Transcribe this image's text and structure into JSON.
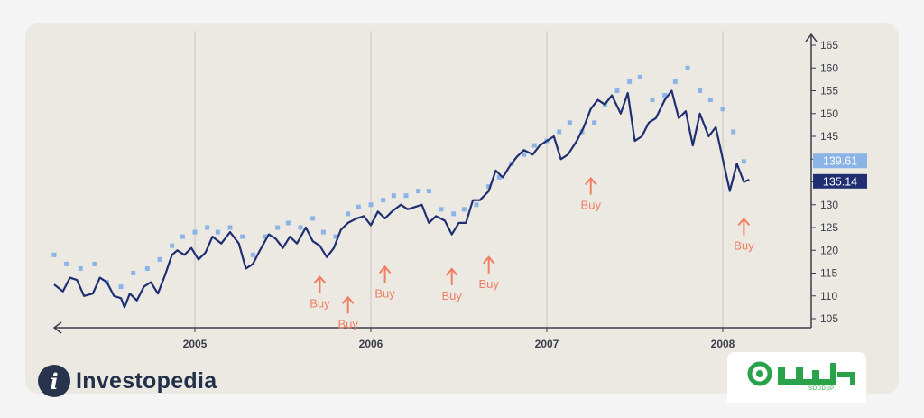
{
  "brand": {
    "name": "Investopedia",
    "mark": "i"
  },
  "logo2": {
    "subtext": "SODDUP"
  },
  "chart_data": {
    "type": "line",
    "title": "",
    "xlabel": "",
    "ylabel": "",
    "ylim": [
      103,
      167
    ],
    "xlim": [
      2004.2,
      2008.5
    ],
    "x_ticks": [
      2005,
      2006,
      2007,
      2008
    ],
    "y_ticks": [
      105,
      110,
      115,
      120,
      125,
      130,
      135,
      140,
      145,
      150,
      155,
      160,
      165
    ],
    "grid": "vertical",
    "price_labels": [
      {
        "text": "139.61",
        "value": 139.61,
        "color": "#8ab4e6"
      },
      {
        "text": "135.14",
        "value": 135.14,
        "color": "#1f2f72"
      }
    ],
    "series": [
      {
        "color": "#1f2f72",
        "style": "line",
        "x": [
          2004.2,
          2004.25,
          2004.29,
          2004.33,
          2004.37,
          2004.42,
          2004.46,
          2004.5,
          2004.54,
          2004.58,
          2004.6,
          2004.63,
          2004.67,
          2004.71,
          2004.75,
          2004.79,
          2004.83,
          2004.87,
          2004.9,
          2004.94,
          2004.98,
          2005.02,
          2005.06,
          2005.1,
          2005.15,
          2005.2,
          2005.25,
          2005.29,
          2005.33,
          2005.37,
          2005.42,
          2005.46,
          2005.5,
          2005.54,
          2005.58,
          2005.63,
          2005.67,
          2005.71,
          2005.75,
          2005.79,
          2005.83,
          2005.87,
          2005.92,
          2005.96,
          2006.0,
          2006.04,
          2006.08,
          2006.12,
          2006.17,
          2006.21,
          2006.25,
          2006.29,
          2006.33,
          2006.37,
          2006.42,
          2006.46,
          2006.5,
          2006.54,
          2006.58,
          2006.62,
          2006.67,
          2006.71,
          2006.75,
          2006.79,
          2006.83,
          2006.87,
          2006.92,
          2006.96,
          2007.0,
          2007.04,
          2007.08,
          2007.12,
          2007.17,
          2007.21,
          2007.25,
          2007.29,
          2007.33,
          2007.37,
          2007.42,
          2007.46,
          2007.5,
          2007.54,
          2007.58,
          2007.62,
          2007.67,
          2007.71,
          2007.75,
          2007.79,
          2007.83,
          2007.87,
          2007.92,
          2007.96,
          2008.0,
          2008.04,
          2008.08,
          2008.12,
          2008.15
        ],
        "y": [
          112.5,
          111,
          114,
          113.5,
          110,
          110.5,
          114,
          113,
          110,
          109.5,
          107.5,
          110.5,
          109,
          112,
          113,
          110.5,
          114.5,
          119,
          120,
          119,
          120.5,
          118,
          119.5,
          123,
          121.5,
          124,
          121.5,
          116,
          117,
          120,
          123.5,
          122.5,
          120.5,
          123,
          121.5,
          125,
          122,
          121,
          118.5,
          120.5,
          124.5,
          126,
          127,
          127.5,
          125.5,
          128.5,
          127,
          128.5,
          130,
          129,
          129.5,
          130,
          126,
          127.5,
          126.5,
          123.5,
          126,
          126,
          131,
          131,
          133,
          137.5,
          136,
          138.5,
          140.5,
          142,
          141,
          143,
          144,
          145,
          140,
          141,
          144,
          147,
          151,
          153,
          152,
          154,
          150,
          154.5,
          144,
          145,
          148,
          149,
          153,
          155,
          149,
          150.5,
          143,
          150,
          145,
          147,
          140,
          133,
          139,
          135,
          135.5
        ]
      },
      {
        "color": "#8ab4e6",
        "style": "markers",
        "x": [
          2004.2,
          2004.27,
          2004.35,
          2004.43,
          2004.5,
          2004.58,
          2004.65,
          2004.73,
          2004.8,
          2004.87,
          2004.93,
          2005.0,
          2005.07,
          2005.13,
          2005.2,
          2005.27,
          2005.33,
          2005.4,
          2005.47,
          2005.53,
          2005.6,
          2005.67,
          2005.73,
          2005.8,
          2005.87,
          2005.93,
          2006.0,
          2006.07,
          2006.13,
          2006.2,
          2006.27,
          2006.33,
          2006.4,
          2006.47,
          2006.53,
          2006.6,
          2006.67,
          2006.73,
          2006.8,
          2006.87,
          2006.93,
          2007.0,
          2007.07,
          2007.13,
          2007.2,
          2007.27,
          2007.33,
          2007.4,
          2007.47,
          2007.53,
          2007.6,
          2007.67,
          2007.73,
          2007.8,
          2007.87,
          2007.93,
          2008.0,
          2008.06,
          2008.12
        ],
        "y": [
          119,
          117,
          116,
          117,
          113,
          112,
          115,
          116,
          118,
          121,
          123,
          124,
          125,
          124,
          125,
          123,
          119,
          123,
          125,
          126,
          125,
          127,
          124,
          123,
          128,
          129.5,
          130,
          131,
          132,
          132,
          133,
          133,
          129,
          128,
          129,
          130,
          134,
          136,
          139,
          141,
          143,
          144,
          146,
          148,
          146,
          148,
          152,
          155,
          157,
          158,
          153,
          154,
          157,
          160,
          155,
          153,
          151,
          146,
          139.5
        ]
      }
    ],
    "annotations": [
      {
        "label": "Buy",
        "x": 2005.71,
        "y": 114.2
      },
      {
        "label": "Buy",
        "x": 2005.87,
        "y": 109.7
      },
      {
        "label": "Buy",
        "x": 2006.08,
        "y": 116.4
      },
      {
        "label": "Buy",
        "x": 2006.46,
        "y": 115.9
      },
      {
        "label": "Buy",
        "x": 2006.67,
        "y": 118.5
      },
      {
        "label": "Buy",
        "x": 2007.25,
        "y": 135.8
      },
      {
        "label": "Buy",
        "x": 2008.12,
        "y": 126.9
      }
    ]
  }
}
